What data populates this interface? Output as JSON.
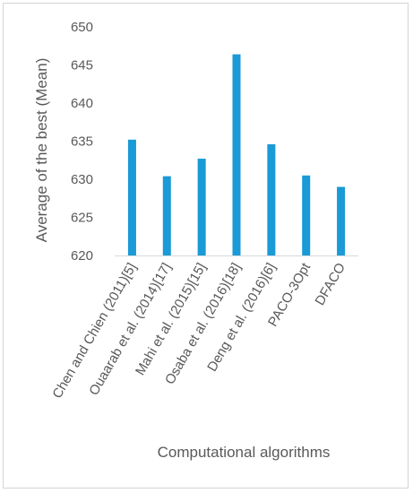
{
  "chart_data": {
    "type": "bar",
    "title": "",
    "xlabel": "Computational algorithms",
    "ylabel": "Average of the best  (Mean)",
    "ylim": [
      620,
      650
    ],
    "yticks": [
      620,
      625,
      630,
      635,
      640,
      645,
      650
    ],
    "grid": false,
    "legend": "none",
    "categories": [
      "Chen and Chien (2011)[5]",
      "Ouaarab et al. (2014)[17]",
      "Mahi et al. (2015)[15]",
      "Osaba et al. (2016)[18]",
      "Deng et al. (2016)[6]",
      "PACO-3Opt",
      "DFACO"
    ],
    "series": [
      {
        "values": [
          635.2,
          630.4,
          632.7,
          646.4,
          634.6,
          630.5,
          629.0
        ],
        "color": "#1a9ad6"
      }
    ]
  }
}
